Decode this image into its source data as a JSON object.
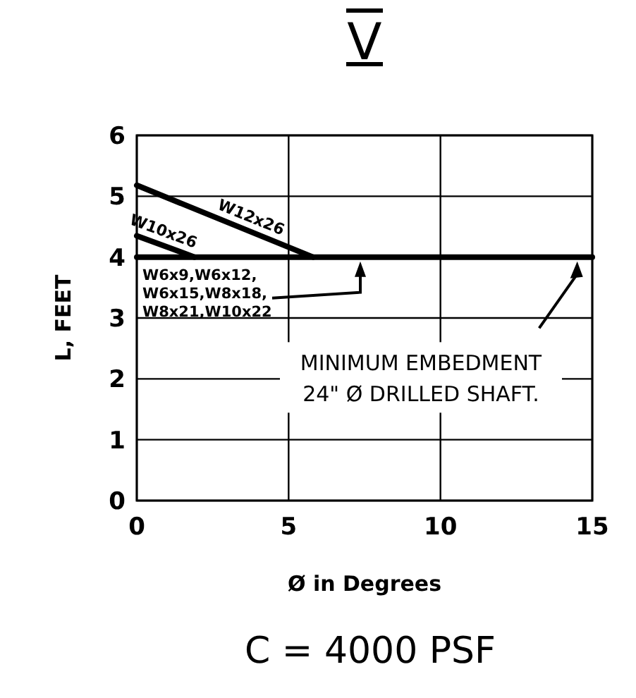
{
  "chart_data": {
    "type": "line",
    "title": "V",
    "xlabel": "Ø in Degrees",
    "ylabel": "L, FEET",
    "series": [
      {
        "name": "W12x26",
        "color": "#000000",
        "x": [
          0,
          5.8
        ],
        "values": [
          5.18,
          4
        ]
      },
      {
        "name": "W10x26",
        "color": "#000000",
        "x": [
          0,
          1.9
        ],
        "values": [
          4.35,
          4
        ]
      }
    ],
    "ref_lines": [
      {
        "axis": "y",
        "value": 4,
        "label": "W6x9,W6x12, W6x15,W8x18, W8x21,W10x22",
        "color": "#000000"
      }
    ],
    "xlim": [
      0,
      15
    ],
    "xticks": [
      0,
      5,
      10,
      15
    ],
    "ylim": [
      0,
      6
    ],
    "yticks": [
      0,
      1,
      2,
      3,
      4,
      5,
      6
    ],
    "grid": true,
    "legend": false,
    "marker": "none",
    "line_style": "solid",
    "annotations": [
      "MINIMUM EMBEDMENT 24\" Ø DRILLED SHAFT.",
      "C = 4000 PSF"
    ]
  }
}
